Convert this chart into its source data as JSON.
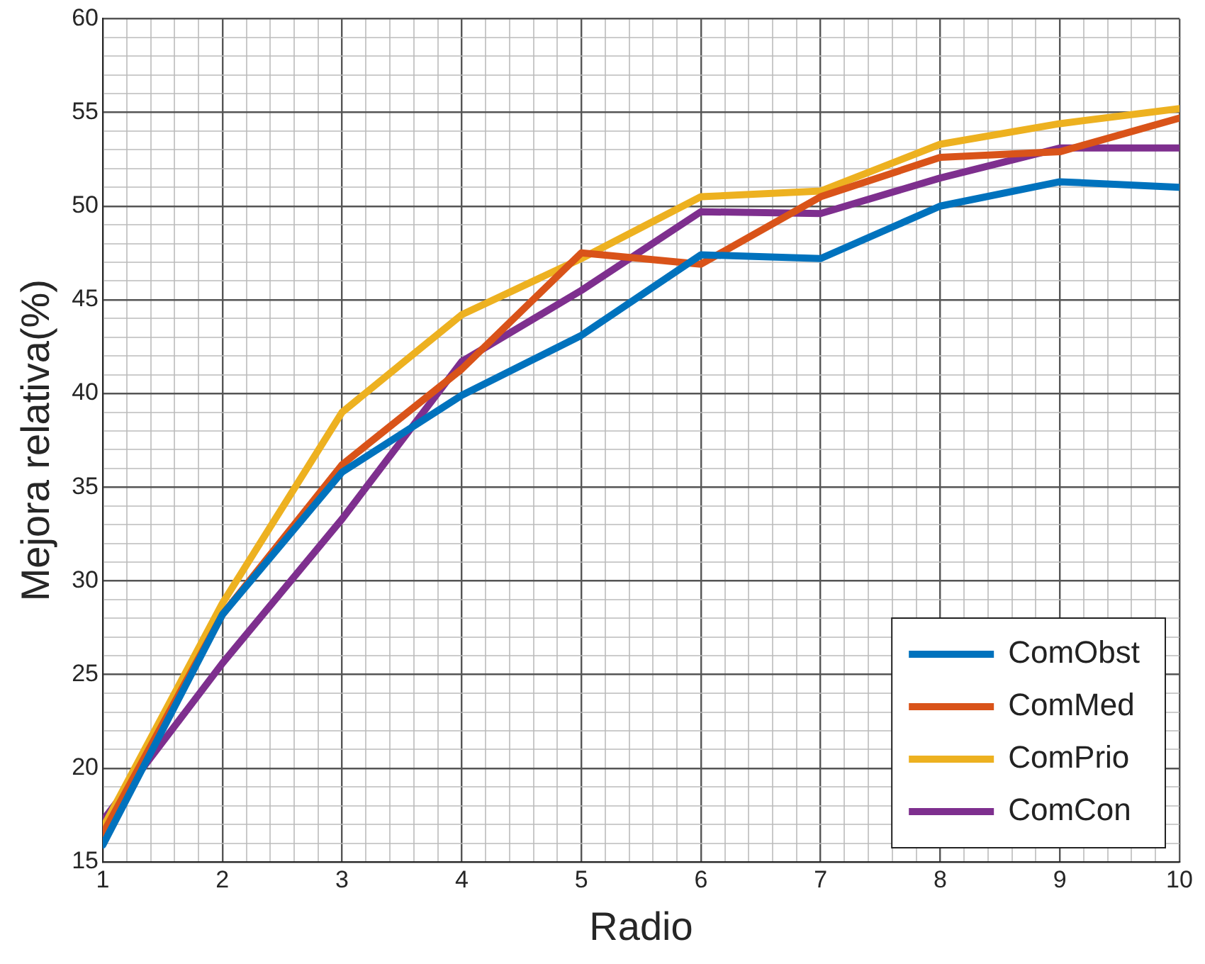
{
  "chart_data": {
    "type": "line",
    "xlabel": "Radio",
    "ylabel": "Mejora relativa(%)",
    "x": [
      1,
      2,
      3,
      4,
      5,
      6,
      7,
      8,
      9,
      10
    ],
    "series": [
      {
        "name": "ComObst",
        "color": "#0072bd",
        "values": [
          15.9,
          28.2,
          35.8,
          39.9,
          43.1,
          47.4,
          47.2,
          50.0,
          51.3,
          51.0
        ]
      },
      {
        "name": "ComMed",
        "color": "#d95319",
        "values": [
          16.5,
          28.2,
          36.2,
          41.3,
          47.5,
          46.9,
          50.5,
          52.6,
          52.9,
          54.7
        ]
      },
      {
        "name": "ComPrio",
        "color": "#edb120",
        "values": [
          16.8,
          28.8,
          39.0,
          44.2,
          47.2,
          50.5,
          50.8,
          53.3,
          54.4,
          55.2
        ]
      },
      {
        "name": "ComCon",
        "color": "#7e2f8e",
        "values": [
          17.2,
          25.6,
          33.3,
          41.7,
          45.5,
          49.7,
          49.6,
          51.5,
          53.1,
          53.1
        ]
      }
    ],
    "xlim": [
      1,
      10
    ],
    "ylim": [
      15,
      60
    ],
    "xticks": [
      1,
      {
        "value": 1.2,
        "label": null
      },
      {
        "value": 1.4,
        "label": null
      },
      {
        "value": 1.6,
        "label": null
      },
      {
        "value": 1.8,
        "label": null
      },
      2,
      {
        "value": 2.2,
        "label": null
      },
      {
        "value": 2.4,
        "label": null
      },
      {
        "value": 2.6,
        "label": null
      },
      {
        "value": 2.8,
        "label": null
      },
      3,
      {
        "value": 3.2,
        "label": null
      },
      {
        "value": 3.4,
        "label": null
      },
      {
        "value": 3.6,
        "label": null
      },
      {
        "value": 3.8,
        "label": null
      },
      4,
      {
        "value": 4.2,
        "label": null
      },
      {
        "value": 4.4,
        "label": null
      },
      {
        "value": 4.6,
        "label": null
      },
      {
        "value": 4.8,
        "label": null
      },
      5,
      {
        "value": 5.2,
        "label": null
      },
      {
        "value": 5.4,
        "label": null
      },
      {
        "value": 5.6,
        "label": null
      },
      {
        "value": 5.8,
        "label": null
      },
      6,
      {
        "value": 6.2,
        "label": null
      },
      {
        "value": 6.4,
        "label": null
      },
      {
        "value": 6.6,
        "label": null
      },
      {
        "value": 6.8,
        "label": null
      },
      7,
      {
        "value": 7.2,
        "label": null
      },
      {
        "value": 7.4,
        "label": null
      },
      {
        "value": 7.6,
        "label": null
      },
      {
        "value": 7.8,
        "label": null
      },
      8,
      {
        "value": 8.2,
        "label": null
      },
      {
        "value": 8.4,
        "label": null
      },
      {
        "value": 8.6,
        "label": null
      },
      {
        "value": 8.8,
        "label": null
      },
      9,
      {
        "value": 9.2,
        "label": null
      },
      {
        "value": 9.4,
        "label": null
      },
      {
        "value": 9.6,
        "label": null
      },
      {
        "value": 9.8,
        "label": null
      },
      10
    ],
    "yticks": [
      15,
      {
        "value": 16,
        "label": null
      },
      {
        "value": 17,
        "label": null
      },
      {
        "value": 18,
        "label": null
      },
      {
        "value": 19,
        "label": null
      },
      20,
      {
        "value": 21,
        "label": null
      },
      {
        "value": 22,
        "label": null
      },
      {
        "value": 23,
        "label": null
      },
      {
        "value": 24,
        "label": null
      },
      25,
      {
        "value": 26,
        "label": null
      },
      {
        "value": 27,
        "label": null
      },
      {
        "value": 28,
        "label": null
      },
      {
        "value": 29,
        "label": null
      },
      30,
      {
        "value": 31,
        "label": null
      },
      {
        "value": 32,
        "label": null
      },
      {
        "value": 33,
        "label": null
      },
      {
        "value": 34,
        "label": null
      },
      35,
      {
        "value": 36,
        "label": null
      },
      {
        "value": 37,
        "label": null
      },
      {
        "value": 38,
        "label": null
      },
      {
        "value": 39,
        "label": null
      },
      40,
      {
        "value": 41,
        "label": null
      },
      {
        "value": 42,
        "label": null
      },
      {
        "value": 43,
        "label": null
      },
      {
        "value": 44,
        "label": null
      },
      45,
      {
        "value": 46,
        "label": null
      },
      {
        "value": 47,
        "label": null
      },
      {
        "value": 48,
        "label": null
      },
      {
        "value": 49,
        "label": null
      },
      50,
      {
        "value": 51,
        "label": null
      },
      {
        "value": 52,
        "label": null
      },
      {
        "value": 53,
        "label": null
      },
      {
        "value": 54,
        "label": null
      },
      55,
      {
        "value": 56,
        "label": null
      },
      {
        "value": 57,
        "label": null
      },
      {
        "value": 58,
        "label": null
      },
      {
        "value": 59,
        "label": null
      },
      60
    ],
    "grid": true,
    "legend": "bottom right",
    "marker": "none",
    "line_style": "solid"
  }
}
